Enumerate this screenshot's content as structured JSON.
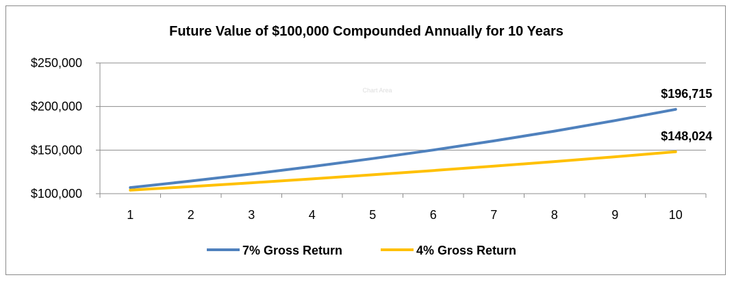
{
  "chart_data": {
    "type": "line",
    "title": "Future Value of $100,000 Compounded Annually for 10 Years",
    "watermark": "Chart Area",
    "categories": [
      "1",
      "2",
      "3",
      "4",
      "5",
      "6",
      "7",
      "8",
      "9",
      "10"
    ],
    "y_tick_labels": [
      "$100,000",
      "$150,000",
      "$200,000",
      "$250,000"
    ],
    "y_tick_values": [
      100000,
      150000,
      200000,
      250000
    ],
    "ylim": [
      100000,
      250000
    ],
    "grid": true,
    "legend_position": "bottom",
    "series": [
      {
        "name": "7% Gross Return",
        "color": "#4F81BD",
        "values": [
          107000,
          114490,
          122504,
          131080,
          140255,
          150073,
          160578,
          171819,
          183846,
          196715
        ],
        "end_label": "$196,715"
      },
      {
        "name": "4% Gross Return",
        "color": "#FFC000",
        "values": [
          104000,
          108160,
          112486,
          116986,
          121665,
          126532,
          131593,
          136857,
          142331,
          148024
        ],
        "end_label": "$148,024"
      }
    ]
  }
}
